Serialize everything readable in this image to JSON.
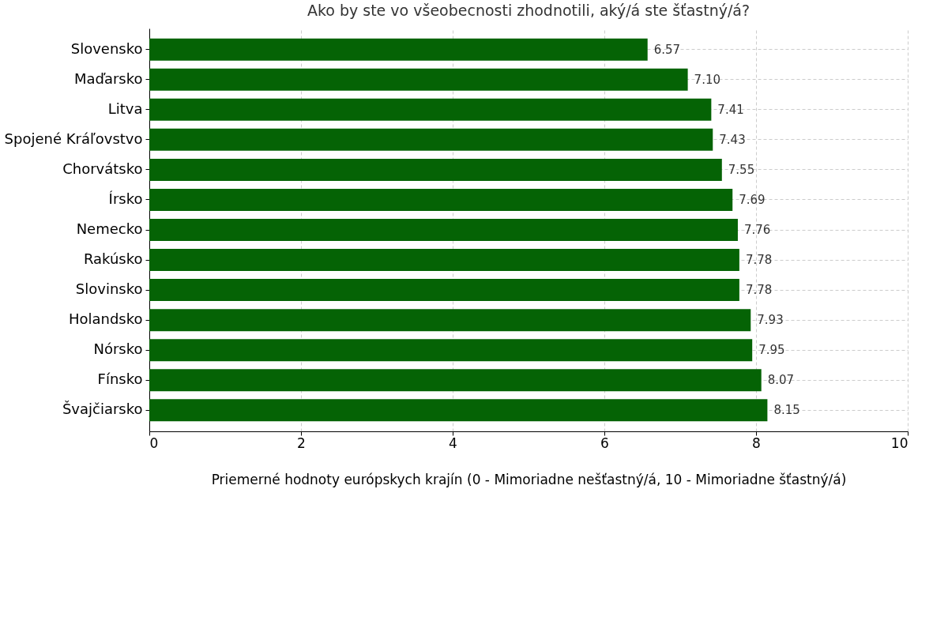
{
  "chart_data": {
    "type": "bar",
    "orientation": "horizontal",
    "title": "Ako by ste vo všeobecnosti zhodnotili, aký/á ste šťastný/á?",
    "xlabel": "Priemerné hodnoty európskych krajín (0 - Mimoriadne nešťastný/á, 10 - Mimoriadne šťastný/á)",
    "categories": [
      "Slovensko",
      "Maďarsko",
      "Litva",
      "Spojené Kráľovstvo",
      "Chorvátsko",
      "Írsko",
      "Nemecko",
      "Rakúsko",
      "Slovinsko",
      "Holandsko",
      "Nórsko",
      "Fínsko",
      "Švajčiarsko"
    ],
    "values": [
      6.57,
      7.1,
      7.41,
      7.43,
      7.55,
      7.69,
      7.76,
      7.78,
      7.78,
      7.93,
      7.95,
      8.07,
      8.15
    ],
    "color": "#056305",
    "xlim": [
      0,
      10
    ],
    "xticks": [
      0,
      2,
      4,
      6,
      8,
      10
    ],
    "value_labels": [
      "6.57",
      "7.10",
      "7.41",
      "7.43",
      "7.55",
      "7.69",
      "7.76",
      "7.78",
      "7.78",
      "7.93",
      "7.95",
      "8.07",
      "8.15"
    ],
    "grid": true
  }
}
